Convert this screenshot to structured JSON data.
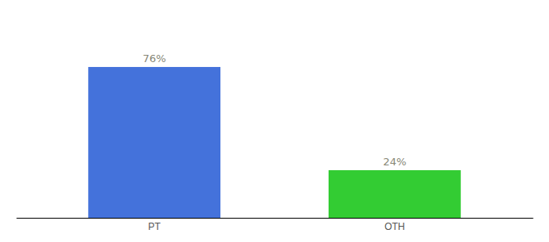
{
  "chart_data": {
    "type": "bar",
    "categories": [
      "PT",
      "OTH"
    ],
    "values": [
      76,
      24
    ],
    "value_labels": [
      "76%",
      "24%"
    ],
    "colors": [
      "#4472db",
      "#33cc33"
    ],
    "ylim": [
      0,
      100
    ],
    "data_labels": true,
    "tick_labels": "x"
  }
}
